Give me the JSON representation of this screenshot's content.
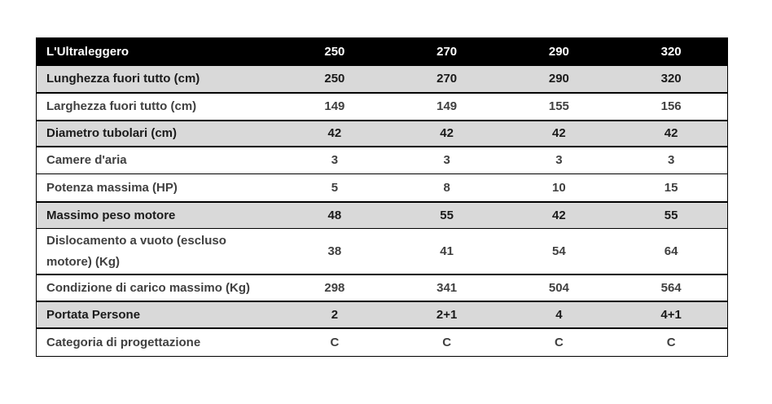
{
  "table": {
    "title": "L'Ultraleggero",
    "columns": [
      "250",
      "270",
      "290",
      "320"
    ],
    "rows": [
      {
        "label": "Lunghezza fuori tutto (cm)",
        "values": [
          "250",
          "270",
          "290",
          "320"
        ]
      },
      {
        "label": "Larghezza fuori tutto (cm)",
        "values": [
          "149",
          "149",
          "155",
          "156"
        ]
      },
      {
        "label": "Diametro tubolari (cm)",
        "values": [
          "42",
          "42",
          "42",
          "42"
        ]
      },
      {
        "label": "Camere d'aria",
        "values": [
          "3",
          "3",
          "3",
          "3"
        ]
      },
      {
        "label": "Potenza massima (HP)",
        "values": [
          "5",
          "8",
          "10",
          "15"
        ]
      },
      {
        "label": "Massimo peso motore",
        "values": [
          "48",
          "55",
          "42",
          "55"
        ]
      },
      {
        "label": "Dislocamento a vuoto (escluso motore) (Kg)",
        "values": [
          "38",
          "41",
          "54",
          "64"
        ]
      },
      {
        "label": "Condizione di carico massimo (Kg)",
        "values": [
          "298",
          "341",
          "504",
          "564"
        ]
      },
      {
        "label": "Portata Persone",
        "values": [
          "2",
          "2+1",
          "4",
          "4+1"
        ]
      },
      {
        "label": "Categoria di progettazione",
        "values": [
          "C",
          "C",
          "C",
          "C"
        ]
      }
    ],
    "colors": {
      "header_bg": "#000000",
      "header_text": "#ffffff",
      "shaded_row_bg": "#d9d9d9",
      "shaded_row_text": "#1a1a1a",
      "plain_row_text": "#404040",
      "border": "#000000",
      "page_bg": "#ffffff"
    }
  }
}
